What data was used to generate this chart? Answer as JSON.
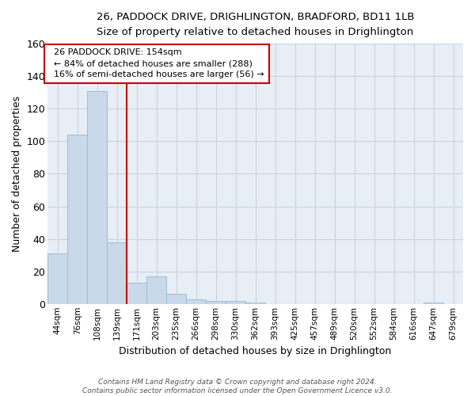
{
  "title_line1": "26, PADDOCK DRIVE, DRIGHLINGTON, BRADFORD, BD11 1LB",
  "title_line2": "Size of property relative to detached houses in Drighlington",
  "xlabel": "Distribution of detached houses by size in Drighlington",
  "ylabel": "Number of detached properties",
  "bar_labels": [
    "44sqm",
    "76sqm",
    "108sqm",
    "139sqm",
    "171sqm",
    "203sqm",
    "235sqm",
    "266sqm",
    "298sqm",
    "330sqm",
    "362sqm",
    "393sqm",
    "425sqm",
    "457sqm",
    "489sqm",
    "520sqm",
    "552sqm",
    "584sqm",
    "616sqm",
    "647sqm",
    "679sqm"
  ],
  "bar_values": [
    31,
    104,
    131,
    38,
    13,
    17,
    6,
    3,
    2,
    2,
    1,
    0,
    0,
    0,
    0,
    0,
    0,
    0,
    0,
    1,
    0
  ],
  "bar_color": "#c9d9ea",
  "bar_edge_color": "#9bbdd4",
  "vline_x": 3.5,
  "vline_color": "#cc0000",
  "annotation_text": "  26 PADDOCK DRIVE: 154sqm\n  ← 84% of detached houses are smaller (288)\n  16% of semi-detached houses are larger (56) →",
  "annotation_box_color": "#ffffff",
  "annotation_box_edge": "#cc0000",
  "ylim": [
    0,
    160
  ],
  "yticks": [
    0,
    20,
    40,
    60,
    80,
    100,
    120,
    140,
    160
  ],
  "grid_color": "#c8d4e0",
  "plot_bg_color": "#e8eef5",
  "fig_bg_color": "#ffffff",
  "footer": "Contains HM Land Registry data © Crown copyright and database right 2024.\nContains public sector information licensed under the Open Government Licence v3.0."
}
